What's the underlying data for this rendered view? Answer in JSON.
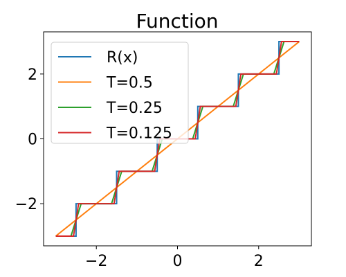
{
  "chart_data": {
    "type": "line",
    "title": "Function",
    "xlabel": "",
    "ylabel": "",
    "xlim": [
      -3.3,
      3.3
    ],
    "ylim": [
      -3.3,
      3.3
    ],
    "x_ticks": [
      -2,
      0,
      2
    ],
    "x_tick_labels": [
      "−2",
      "0",
      "2"
    ],
    "y_ticks": [
      -2,
      0,
      2
    ],
    "y_tick_labels": [
      "−2",
      "0",
      "2"
    ],
    "grid": false,
    "legend_position": "upper-left",
    "series": [
      {
        "name": "R(x)",
        "color": "#1f77b4",
        "T": 0
      },
      {
        "name": "T=0.5",
        "color": "#ff7f0e",
        "T": 0.5
      },
      {
        "name": "T=0.25",
        "color": "#2ca02c",
        "T": 0.25
      },
      {
        "name": "T=0.125",
        "color": "#d62728",
        "T": 0.125
      }
    ],
    "x_domain": [
      -3,
      3
    ],
    "function": "R(x) = round(x) with transition width T around half-integers"
  }
}
